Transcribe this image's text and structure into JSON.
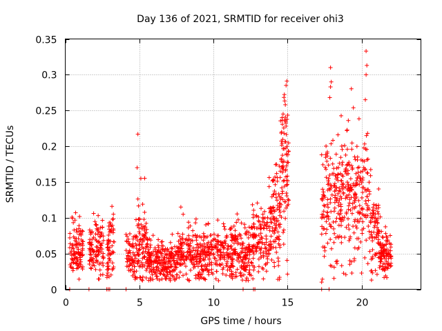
{
  "chart_data": {
    "type": "scatter",
    "title": "Day 136 of 2021, SRMTID for receiver ohi3",
    "xlabel": "GPS time / hours",
    "ylabel": "SRMTID / TECUs",
    "xlim": [
      0,
      24
    ],
    "ylim": [
      0,
      0.35
    ],
    "x_ticks": [
      0,
      5,
      10,
      15,
      20
    ],
    "y_ticks": [
      0,
      0.05,
      0.1,
      0.15,
      0.2,
      0.25,
      0.3,
      0.35
    ],
    "x_tick_labels": [
      "0",
      "5",
      "10",
      "15",
      "20"
    ],
    "y_tick_labels": [
      "0",
      "0.05",
      "0.1",
      "0.15",
      "0.2",
      "0.25",
      "0.3",
      "0.35"
    ],
    "grid": true,
    "marker": "+",
    "color": "#ff0000",
    "series": [
      {
        "name": "SRMTID",
        "segments": [
          {
            "x0": 0.3,
            "x1": 1.2,
            "mean": 0.055,
            "spread": 0.018,
            "n": 110
          },
          {
            "x0": 1.6,
            "x1": 2.6,
            "mean": 0.058,
            "spread": 0.02,
            "n": 110
          },
          {
            "x0": 2.8,
            "x1": 3.3,
            "mean": 0.06,
            "spread": 0.03,
            "n": 60
          },
          {
            "x0": 4.1,
            "x1": 4.7,
            "mean": 0.045,
            "spread": 0.015,
            "n": 60
          },
          {
            "x0": 4.7,
            "x1": 5.6,
            "mean": 0.06,
            "spread": 0.025,
            "n": 110
          },
          {
            "x0": 5.6,
            "x1": 7.5,
            "mean": 0.038,
            "spread": 0.014,
            "n": 220
          },
          {
            "x0": 7.5,
            "x1": 10.0,
            "mean": 0.048,
            "spread": 0.018,
            "n": 270
          },
          {
            "x0": 10.0,
            "x1": 12.5,
            "mean": 0.05,
            "spread": 0.02,
            "n": 260
          },
          {
            "x0": 12.5,
            "x1": 13.7,
            "mean": 0.065,
            "spread": 0.025,
            "n": 120
          },
          {
            "x0": 13.7,
            "x1": 14.5,
            "mean": 0.095,
            "spread": 0.035,
            "n": 110
          },
          {
            "x0": 14.5,
            "x1": 15.1,
            "mean": 0.16,
            "spread": 0.05,
            "n": 90
          },
          {
            "x0": 17.3,
            "x1": 18.5,
            "mean": 0.12,
            "spread": 0.04,
            "n": 130
          },
          {
            "x0": 18.5,
            "x1": 20.5,
            "mean": 0.13,
            "spread": 0.045,
            "n": 220
          },
          {
            "x0": 20.5,
            "x1": 21.2,
            "mean": 0.09,
            "spread": 0.03,
            "n": 80
          },
          {
            "x0": 21.2,
            "x1": 22.0,
            "mean": 0.05,
            "spread": 0.015,
            "n": 100
          }
        ],
        "peaks": [
          {
            "x": 4.9,
            "y": 0.217
          },
          {
            "x": 4.85,
            "y": 0.17
          },
          {
            "x": 5.1,
            "y": 0.155
          },
          {
            "x": 7.8,
            "y": 0.115
          },
          {
            "x": 3.15,
            "y": 0.116
          },
          {
            "x": 0.7,
            "y": 0.107
          },
          {
            "x": 14.9,
            "y": 0.285
          },
          {
            "x": 14.85,
            "y": 0.258
          },
          {
            "x": 14.7,
            "y": 0.245
          },
          {
            "x": 14.6,
            "y": 0.22
          },
          {
            "x": 17.9,
            "y": 0.31
          },
          {
            "x": 17.95,
            "y": 0.29
          },
          {
            "x": 17.9,
            "y": 0.283
          },
          {
            "x": 17.85,
            "y": 0.268
          },
          {
            "x": 17.3,
            "y": 0.188
          },
          {
            "x": 20.3,
            "y": 0.333
          },
          {
            "x": 20.35,
            "y": 0.313
          },
          {
            "x": 20.3,
            "y": 0.3
          },
          {
            "x": 20.25,
            "y": 0.265
          },
          {
            "x": 19.1,
            "y": 0.236
          },
          {
            "x": 19.0,
            "y": 0.222
          },
          {
            "x": 18.4,
            "y": 0.216
          },
          {
            "x": 20.4,
            "y": 0.218
          },
          {
            "x": 17.3,
            "y": 0.01
          },
          {
            "x": 19.5,
            "y": 0.04
          },
          {
            "x": 19.2,
            "y": 0.035
          }
        ],
        "zero_points": [
          0.3,
          1.6,
          2.8,
          2.9,
          3.0,
          4.1,
          12.0,
          12.7,
          12.8,
          17.3,
          17.8
        ]
      }
    ]
  }
}
